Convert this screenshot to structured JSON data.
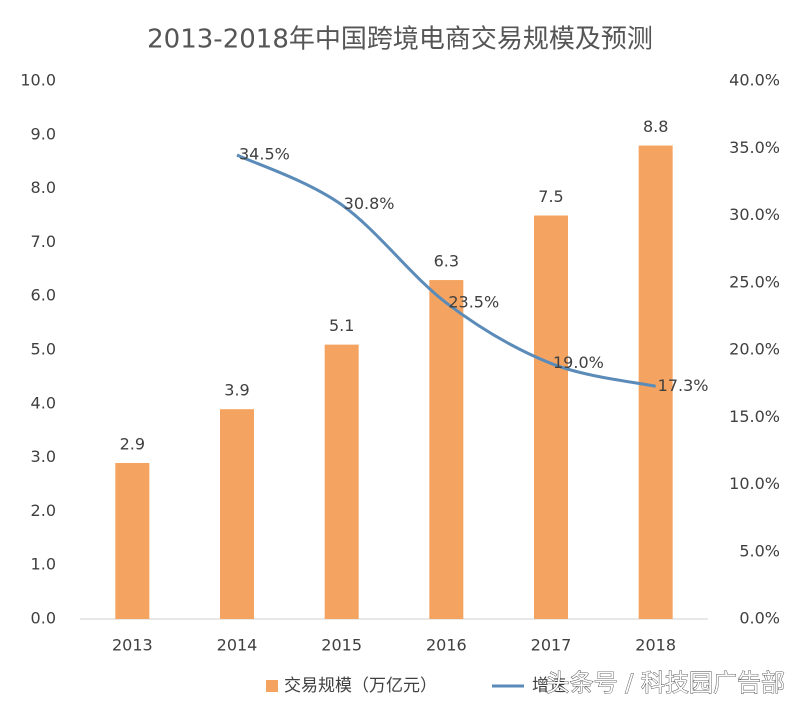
{
  "chart_data": {
    "type": "bar",
    "title": "2013-2018年中国跨境电商交易规模及预测",
    "categories": [
      "2013",
      "2014",
      "2015",
      "2016",
      "2017",
      "2018"
    ],
    "series": [
      {
        "name": "交易规模（万亿元）",
        "type": "bar",
        "color": "#f4a460",
        "values": [
          2.9,
          3.9,
          5.1,
          6.3,
          7.5,
          8.8
        ]
      },
      {
        "name": "增速",
        "type": "line",
        "axis": "y2",
        "color": "#5b8bb8",
        "values": [
          null,
          34.5,
          30.8,
          23.5,
          19.0,
          17.3
        ],
        "value_labels": [
          null,
          "34.5%",
          "30.8%",
          "23.5%",
          "19.0%",
          "17.3%"
        ]
      }
    ],
    "ylim": [
      0,
      10
    ],
    "yticks": [
      {
        "value": 0,
        "label": "0.0"
      },
      {
        "value": 1,
        "label": "1.0"
      },
      {
        "value": 2,
        "label": "2.0"
      },
      {
        "value": 3,
        "label": "3.0"
      },
      {
        "value": 4,
        "label": "4.0"
      },
      {
        "value": 5,
        "label": "5.0"
      },
      {
        "value": 6,
        "label": "6.0"
      },
      {
        "value": 7,
        "label": "7.0"
      },
      {
        "value": 8,
        "label": "8.0"
      },
      {
        "value": 9,
        "label": "9.0"
      },
      {
        "value": 10,
        "label": "10.0"
      }
    ],
    "y2lim": [
      0,
      40
    ],
    "y2ticks": [
      {
        "value": 0,
        "label": "0.0%"
      },
      {
        "value": 5,
        "label": "5.0%"
      },
      {
        "value": 10,
        "label": "10.0%"
      },
      {
        "value": 15,
        "label": "15.0%"
      },
      {
        "value": 20,
        "label": "20.0%"
      },
      {
        "value": 25,
        "label": "25.0%"
      },
      {
        "value": 30,
        "label": "30.0%"
      },
      {
        "value": 35,
        "label": "35.0%"
      },
      {
        "value": 40,
        "label": "40.0%"
      }
    ],
    "grid": false,
    "watermark": "头条号 / 科技园广告部"
  }
}
